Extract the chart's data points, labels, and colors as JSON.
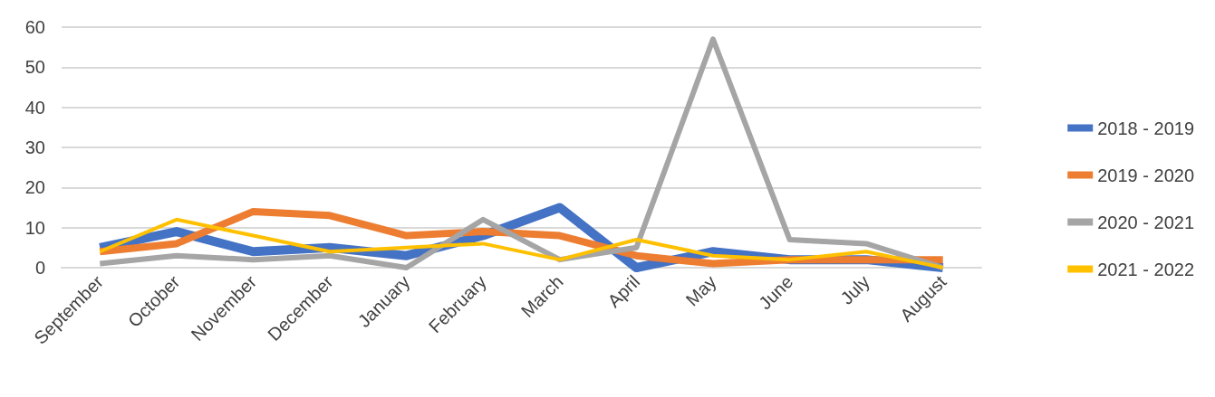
{
  "chart_data": {
    "type": "line",
    "categories": [
      "September",
      "October",
      "November",
      "December",
      "January",
      "February",
      "March",
      "April",
      "May",
      "June",
      "July",
      "August"
    ],
    "series": [
      {
        "name": "2018 - 2019",
        "color": "#4472c4",
        "values": [
          5,
          9,
          4,
          5,
          3,
          8,
          15,
          0,
          4,
          2,
          2,
          0
        ]
      },
      {
        "name": "2019 - 2020",
        "color": "#ed7d31",
        "values": [
          4,
          6,
          14,
          13,
          8,
          9,
          8,
          3,
          1,
          2,
          2,
          2
        ]
      },
      {
        "name": "2020 - 2021",
        "color": "#a5a5a5",
        "values": [
          1,
          3,
          2,
          3,
          0,
          12,
          2,
          5,
          57,
          7,
          6,
          0
        ]
      },
      {
        "name": "2021 - 2022",
        "color": "#ffc000",
        "values": [
          4,
          12,
          8,
          4,
          5,
          6,
          2,
          7,
          3,
          2,
          4,
          0
        ]
      }
    ],
    "ylim": [
      0,
      60
    ],
    "yticks": [
      0,
      10,
      20,
      30,
      40,
      50,
      60
    ],
    "grid": "y",
    "legend": "right",
    "marker": "none",
    "line_style": "solid"
  }
}
